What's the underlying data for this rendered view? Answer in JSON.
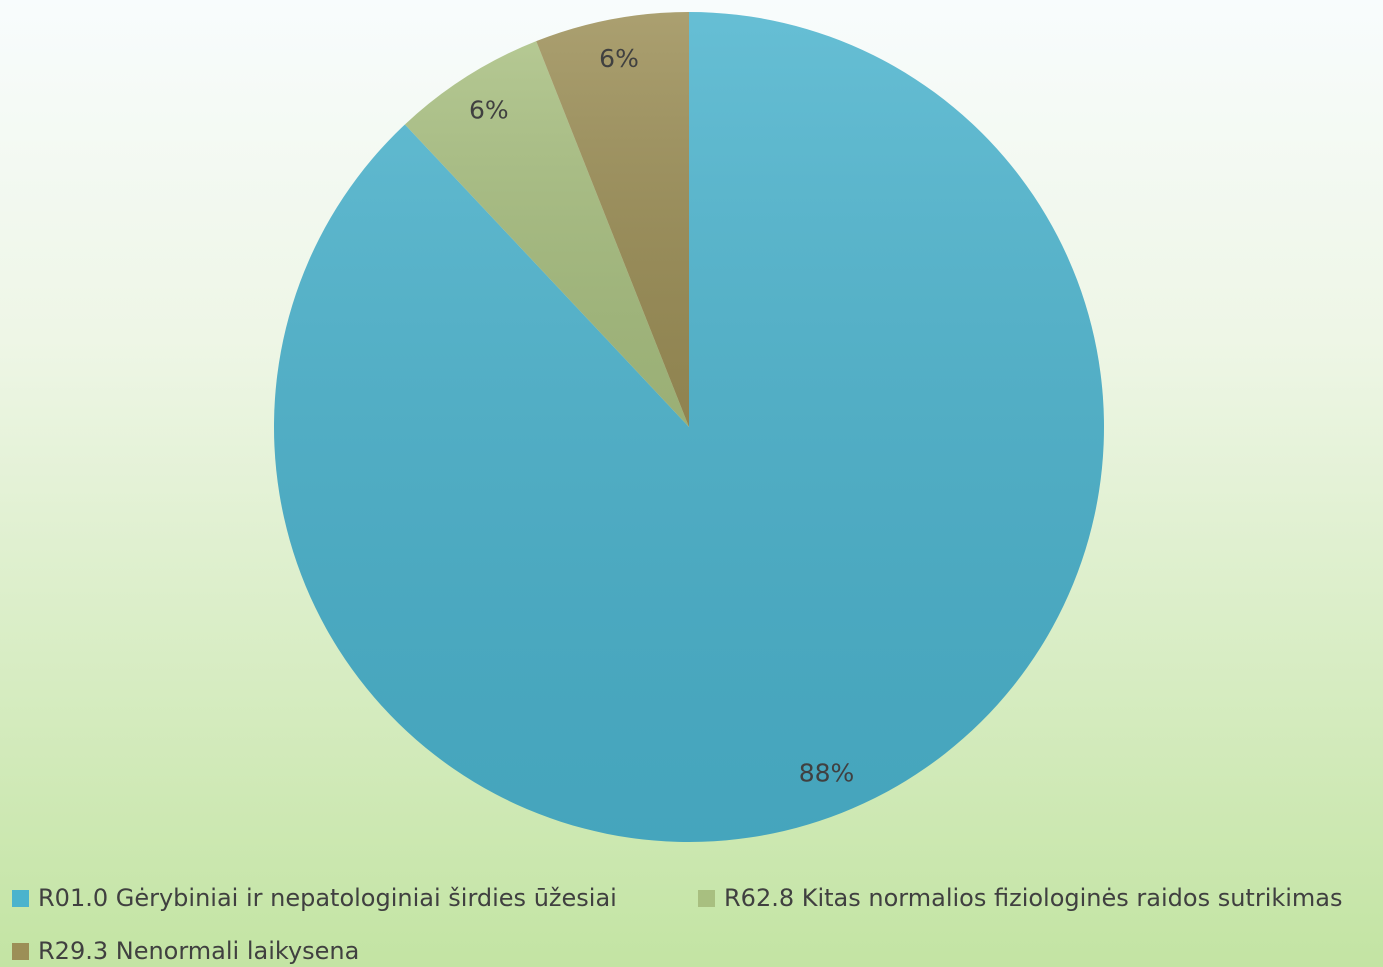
{
  "chart_data": {
    "type": "pie",
    "categories": [
      "R01.0 Gėrybiniai ir nepatologiniai širdies ūžesiai",
      "R62.8 Kitas normalios fiziologinės raidos sutrikimas",
      "R29.3 Nenormali laikysena"
    ],
    "values": [
      88,
      6,
      6
    ],
    "value_labels": [
      "88%",
      "6%",
      "6%"
    ],
    "colors": [
      "#4bb3cd",
      "#a8bf80",
      "#9c8f57"
    ],
    "legend": "bottom"
  }
}
